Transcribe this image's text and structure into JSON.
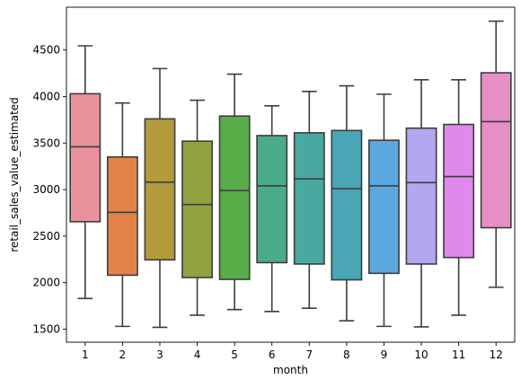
{
  "chart_data": {
    "type": "box",
    "xlabel": "month",
    "ylabel": "retail_sales_value_estimated",
    "ylim": [
      1360,
      4960
    ],
    "yticks": [
      1500,
      2000,
      2500,
      3000,
      3500,
      4000,
      4500
    ],
    "grid": false,
    "categories": [
      "1",
      "2",
      "3",
      "4",
      "5",
      "6",
      "7",
      "8",
      "9",
      "10",
      "11",
      "12"
    ],
    "boxes": [
      {
        "whisker_low": 1830,
        "q1": 2655,
        "median": 3460,
        "q3": 4030,
        "whisker_high": 4545,
        "color": "#e8919b"
      },
      {
        "whisker_low": 1530,
        "q1": 2080,
        "median": 2755,
        "q3": 3350,
        "whisker_high": 3930,
        "color": "#e2844a"
      },
      {
        "whisker_low": 1520,
        "q1": 2245,
        "median": 3080,
        "q3": 3760,
        "whisker_high": 4300,
        "color": "#b39a3b"
      },
      {
        "whisker_low": 1650,
        "q1": 2055,
        "median": 2840,
        "q3": 3520,
        "whisker_high": 3960,
        "color": "#93a240"
      },
      {
        "whisker_low": 1710,
        "q1": 2035,
        "median": 2990,
        "q3": 3790,
        "whisker_high": 4240,
        "color": "#58ad48"
      },
      {
        "whisker_low": 1690,
        "q1": 2215,
        "median": 3040,
        "q3": 3580,
        "whisker_high": 3900,
        "color": "#4aab8a"
      },
      {
        "whisker_low": 1725,
        "q1": 2200,
        "median": 3115,
        "q3": 3610,
        "whisker_high": 4055,
        "color": "#49a8a0"
      },
      {
        "whisker_low": 1590,
        "q1": 2030,
        "median": 3010,
        "q3": 3635,
        "whisker_high": 4115,
        "color": "#48a6b5"
      },
      {
        "whisker_low": 1530,
        "q1": 2100,
        "median": 3040,
        "q3": 3530,
        "whisker_high": 4025,
        "color": "#5aa8dd"
      },
      {
        "whisker_low": 1525,
        "q1": 2200,
        "median": 3075,
        "q3": 3660,
        "whisker_high": 4180,
        "color": "#b4a6ef"
      },
      {
        "whisker_low": 1650,
        "q1": 2270,
        "median": 3140,
        "q3": 3700,
        "whisker_high": 4180,
        "color": "#e089ec"
      },
      {
        "whisker_low": 1950,
        "q1": 2590,
        "median": 3730,
        "q3": 4255,
        "whisker_high": 4810,
        "color": "#e68fc6"
      }
    ]
  }
}
